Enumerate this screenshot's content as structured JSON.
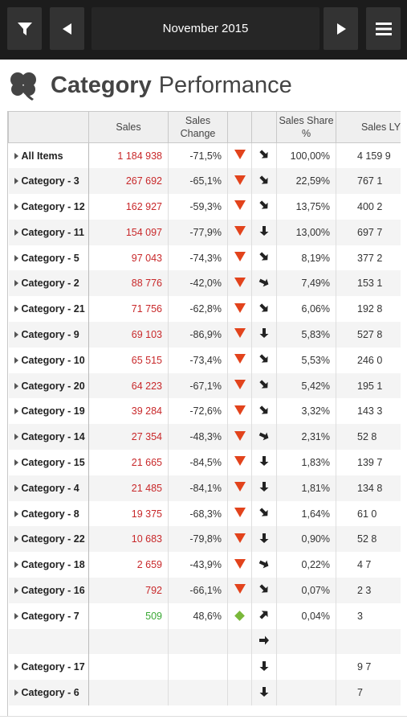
{
  "toolbar": {
    "period": "November 2015",
    "filter_icon": "filter-icon",
    "prev_icon": "triangle-left-icon",
    "next_icon": "triangle-right-icon",
    "menu_icon": "hamburger-menu-icon"
  },
  "heading": {
    "logo_icon": "clover-icon",
    "title_bold": "Category",
    "title_light": "Performance"
  },
  "colors": {
    "negative": "#c8282a",
    "positive": "#39a834",
    "down_indicator": "#e2431c",
    "up_indicator": "#7ab83a"
  },
  "table": {
    "columns": [
      "",
      "Sales",
      "Sales Change",
      "",
      "",
      "Sales Share %",
      "Sales LY"
    ],
    "rows": [
      {
        "name": "All Items",
        "sales": "1 184 938",
        "change": "-71,5%",
        "indicator": "down",
        "trend": "down-right",
        "share": "100,00%",
        "ly": "4 159 9"
      },
      {
        "name": "Category - 3",
        "sales": "267 692",
        "change": "-65,1%",
        "indicator": "down",
        "trend": "down-right",
        "share": "22,59%",
        "ly": "767 1"
      },
      {
        "name": "Category - 12",
        "sales": "162 927",
        "change": "-59,3%",
        "indicator": "down",
        "trend": "down-right",
        "share": "13,75%",
        "ly": "400 2"
      },
      {
        "name": "Category - 11",
        "sales": "154 097",
        "change": "-77,9%",
        "indicator": "down",
        "trend": "down",
        "share": "13,00%",
        "ly": "697 7"
      },
      {
        "name": "Category - 5",
        "sales": "97 043",
        "change": "-74,3%",
        "indicator": "down",
        "trend": "down-right",
        "share": "8,19%",
        "ly": "377 2"
      },
      {
        "name": "Category - 2",
        "sales": "88 776",
        "change": "-42,0%",
        "indicator": "down",
        "trend": "right-down",
        "share": "7,49%",
        "ly": "153 1"
      },
      {
        "name": "Category - 21",
        "sales": "71 756",
        "change": "-62,8%",
        "indicator": "down",
        "trend": "down-right",
        "share": "6,06%",
        "ly": "192 8"
      },
      {
        "name": "Category - 9",
        "sales": "69 103",
        "change": "-86,9%",
        "indicator": "down",
        "trend": "down",
        "share": "5,83%",
        "ly": "527 8"
      },
      {
        "name": "Category - 10",
        "sales": "65 515",
        "change": "-73,4%",
        "indicator": "down",
        "trend": "down-right",
        "share": "5,53%",
        "ly": "246 0"
      },
      {
        "name": "Category - 20",
        "sales": "64 223",
        "change": "-67,1%",
        "indicator": "down",
        "trend": "down-right",
        "share": "5,42%",
        "ly": "195 1"
      },
      {
        "name": "Category - 19",
        "sales": "39 284",
        "change": "-72,6%",
        "indicator": "down",
        "trend": "down-right",
        "share": "3,32%",
        "ly": "143 3"
      },
      {
        "name": "Category - 14",
        "sales": "27 354",
        "change": "-48,3%",
        "indicator": "down",
        "trend": "right-down",
        "share": "2,31%",
        "ly": "52 8"
      },
      {
        "name": "Category - 15",
        "sales": "21 665",
        "change": "-84,5%",
        "indicator": "down",
        "trend": "down",
        "share": "1,83%",
        "ly": "139 7"
      },
      {
        "name": "Category - 4",
        "sales": "21 485",
        "change": "-84,1%",
        "indicator": "down",
        "trend": "down",
        "share": "1,81%",
        "ly": "134 8"
      },
      {
        "name": "Category - 8",
        "sales": "19 375",
        "change": "-68,3%",
        "indicator": "down",
        "trend": "down-right",
        "share": "1,64%",
        "ly": "61 0"
      },
      {
        "name": "Category - 22",
        "sales": "10 683",
        "change": "-79,8%",
        "indicator": "down",
        "trend": "down",
        "share": "0,90%",
        "ly": "52 8"
      },
      {
        "name": "Category - 18",
        "sales": "2 659",
        "change": "-43,9%",
        "indicator": "down",
        "trend": "right-down",
        "share": "0,22%",
        "ly": "4 7"
      },
      {
        "name": "Category - 16",
        "sales": "792",
        "change": "-66,1%",
        "indicator": "down",
        "trend": "down-right",
        "share": "0,07%",
        "ly": "2 3"
      },
      {
        "name": "Category - 7",
        "sales": "509",
        "change": "48,6%",
        "indicator": "up",
        "trend": "up-right",
        "share": "0,04%",
        "ly": "3"
      },
      {
        "name": "",
        "sales": "",
        "change": "",
        "indicator": "",
        "trend": "right",
        "share": "",
        "ly": ""
      },
      {
        "name": "Category - 17",
        "sales": "",
        "change": "",
        "indicator": "",
        "trend": "down",
        "share": "",
        "ly": "9 7"
      },
      {
        "name": "Category - 6",
        "sales": "",
        "change": "",
        "indicator": "",
        "trend": "down",
        "share": "",
        "ly": "7"
      }
    ]
  }
}
